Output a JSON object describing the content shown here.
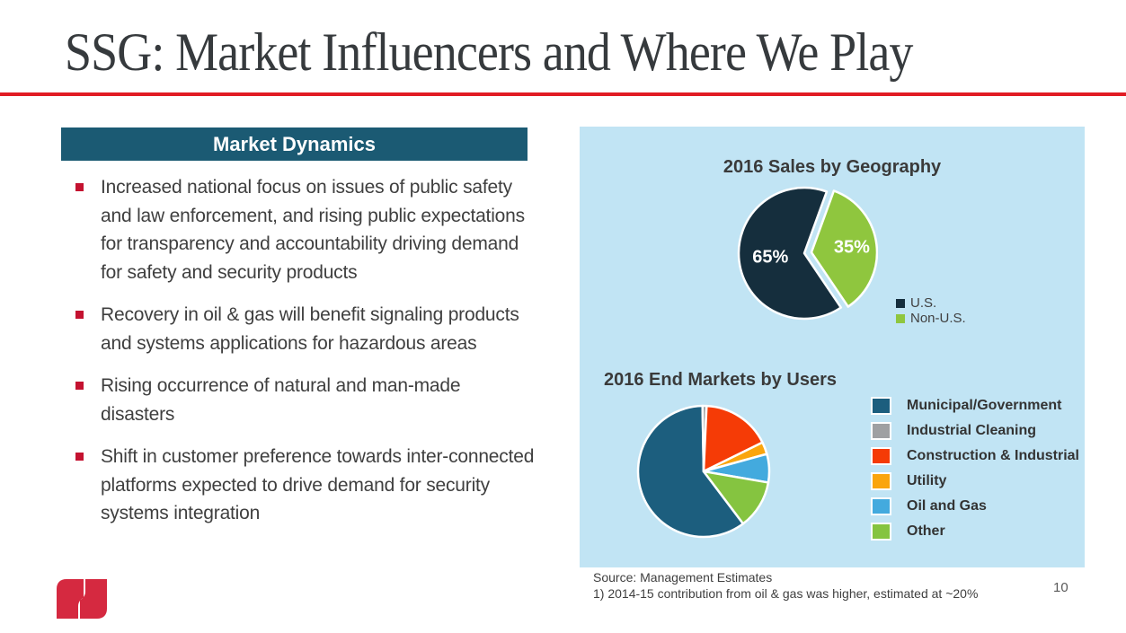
{
  "slide": {
    "title": "SSG: Market Influencers and Where We Play",
    "page_number": "10",
    "accent_red": "#e11c24",
    "logo_red": "#d52940",
    "logo_icon": "federal-signal-fs-logo"
  },
  "market_dynamics": {
    "header": "Market Dynamics",
    "header_bg": "#1b5a73",
    "bullet_marker_color": "#c41230",
    "bullets": [
      "Increased national focus on issues of public safety and law enforcement, and rising public expectations for transparency and accountability driving demand for safety and security products",
      "Recovery in oil & gas will benefit signaling products and systems applications for hazardous areas",
      "Rising occurrence of natural and man-made disasters",
      "Shift in customer preference towards inter-connected platforms expected to drive demand for security systems integration"
    ]
  },
  "panel": {
    "bg": "#c1e4f4"
  },
  "chart_data": [
    {
      "type": "pie",
      "title": "2016 Sales by Geography",
      "labels": [
        "U.S.",
        "Non-U.S."
      ],
      "values": [
        65,
        35
      ],
      "colors": [
        "#152e3d",
        "#8fc63e"
      ],
      "data_labels": [
        "65%",
        "35%"
      ],
      "start_angle": 146,
      "exploded_index": 1,
      "legend_position": "bottom-right"
    },
    {
      "type": "pie",
      "title": "2016 End Markets by Users",
      "labels": [
        "Municipal/Government",
        "Industrial Cleaning",
        "Construction & Industrial",
        "Utility",
        "Oil and Gas",
        "Other"
      ],
      "values": [
        60,
        1,
        17,
        3,
        7,
        12
      ],
      "colors": [
        "#1c5e7e",
        "#9fa0a2",
        "#f53b06",
        "#faa50d",
        "#43aade",
        "#85c440"
      ],
      "data_labels": null,
      "start_angle": 143,
      "exploded_index": -1,
      "legend_position": "right"
    }
  ],
  "footer": {
    "source_line1": "Source: Management Estimates",
    "source_line2": "1) 2014-15 contribution from oil & gas was higher, estimated at ~20%"
  }
}
